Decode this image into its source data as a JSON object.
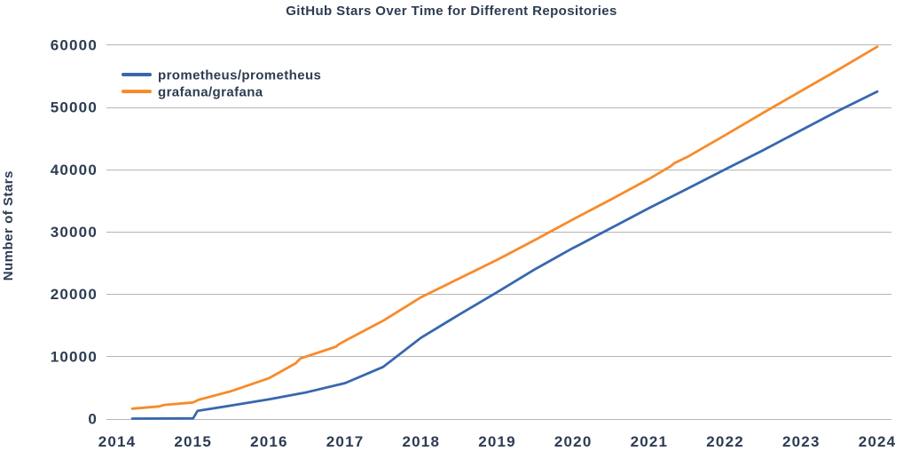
{
  "title": "GitHub Stars Over Time for Different Repositories",
  "colors": {
    "text": "#2d3c52",
    "grid": "#b5b5b5",
    "background": "#ffffff",
    "prometheus_line": "#3867ae",
    "grafana_line": "#f78b2b"
  },
  "chart_data": {
    "type": "line",
    "title": "GitHub Stars Over Time for Different Repositories",
    "xlabel": "",
    "ylabel": "Number of Stars",
    "x_ticks": [
      2014,
      2015,
      2016,
      2017,
      2018,
      2019,
      2020,
      2021,
      2022,
      2023,
      2024
    ],
    "y_ticks": [
      0,
      10000,
      20000,
      30000,
      40000,
      50000,
      60000
    ],
    "xlim": [
      2013.85,
      2024.15
    ],
    "ylim": [
      0,
      60000
    ],
    "grid": "horizontal",
    "legend_position": "upper-left",
    "series": [
      {
        "name": "prometheus/prometheus",
        "color": "#3867ae",
        "points": [
          [
            2014.2,
            0
          ],
          [
            2014.6,
            15
          ],
          [
            2015.0,
            40
          ],
          [
            2015.06,
            1250
          ],
          [
            2015.5,
            2100
          ],
          [
            2016.0,
            3100
          ],
          [
            2016.5,
            4250
          ],
          [
            2017.0,
            5700
          ],
          [
            2017.5,
            8300
          ],
          [
            2018.0,
            13000
          ],
          [
            2018.5,
            16700
          ],
          [
            2019.0,
            20300
          ],
          [
            2019.5,
            24000
          ],
          [
            2020.0,
            27400
          ],
          [
            2020.08,
            27900
          ],
          [
            2020.5,
            30600
          ],
          [
            2021.0,
            33800
          ],
          [
            2021.5,
            36900
          ],
          [
            2022.0,
            40000
          ],
          [
            2022.5,
            43100
          ],
          [
            2023.0,
            46300
          ],
          [
            2023.5,
            49500
          ],
          [
            2024.0,
            52500
          ]
        ]
      },
      {
        "name": "grafana/grafana",
        "color": "#f78b2b",
        "points": [
          [
            2014.2,
            1600
          ],
          [
            2014.55,
            1950
          ],
          [
            2014.62,
            2200
          ],
          [
            2015.0,
            2600
          ],
          [
            2015.07,
            3000
          ],
          [
            2015.5,
            4400
          ],
          [
            2016.0,
            6500
          ],
          [
            2016.35,
            8900
          ],
          [
            2016.41,
            9650
          ],
          [
            2016.88,
            11550
          ],
          [
            2016.92,
            11950
          ],
          [
            2017.0,
            12500
          ],
          [
            2017.5,
            15700
          ],
          [
            2018.0,
            19500
          ],
          [
            2018.5,
            22500
          ],
          [
            2019.0,
            25500
          ],
          [
            2019.5,
            28700
          ],
          [
            2020.0,
            32000
          ],
          [
            2020.5,
            35200
          ],
          [
            2021.0,
            38500
          ],
          [
            2021.28,
            40500
          ],
          [
            2021.33,
            41000
          ],
          [
            2021.5,
            42000
          ],
          [
            2022.0,
            45500
          ],
          [
            2022.5,
            49100
          ],
          [
            2023.0,
            52600
          ],
          [
            2023.5,
            56100
          ],
          [
            2024.0,
            59700
          ]
        ]
      }
    ]
  }
}
